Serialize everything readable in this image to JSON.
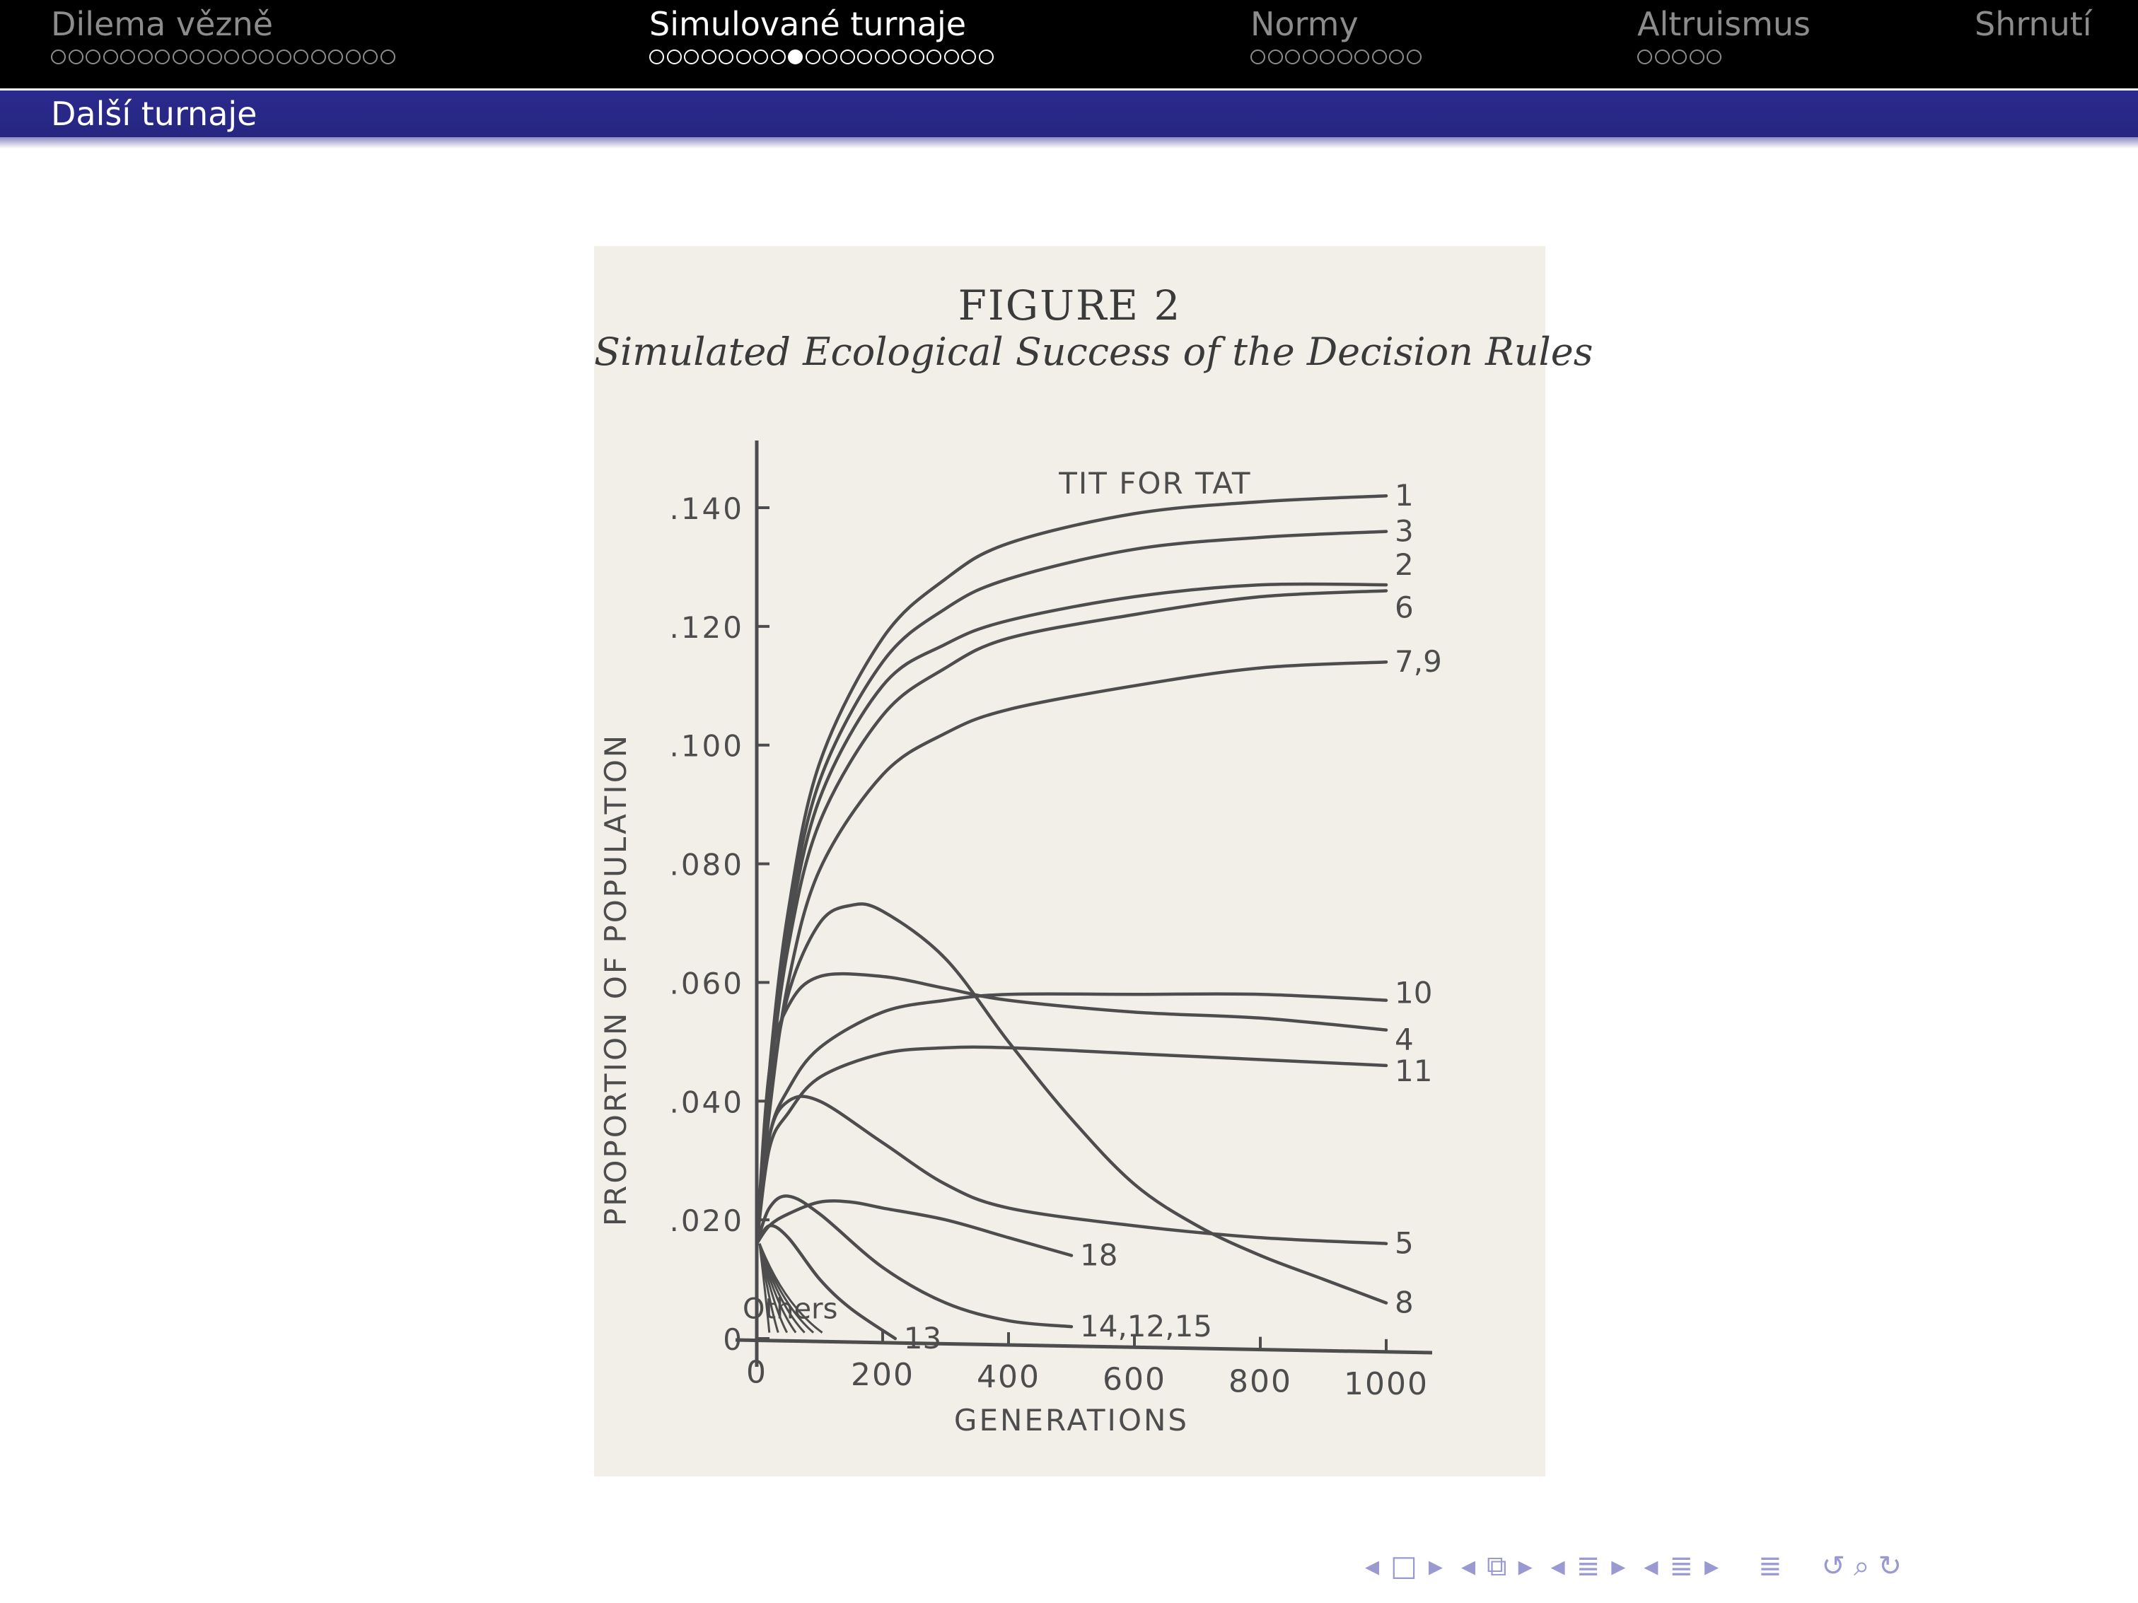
{
  "nav": {
    "sections": [
      {
        "label": "Dilema vězně",
        "dots_total": 20,
        "current_dot": null,
        "active": false
      },
      {
        "label": "Simulované turnaje",
        "dots_total": 20,
        "current_dot": 8,
        "active": true
      },
      {
        "label": "Normy",
        "dots_total": 10,
        "current_dot": null,
        "active": false
      },
      {
        "label": "Altruismus",
        "dots_total": 5,
        "current_dot": null,
        "active": false
      },
      {
        "label": "Shrnutí",
        "dots_total": 0,
        "current_dot": null,
        "active": false
      }
    ],
    "colors": {
      "active": "#ffffff",
      "inactive": "#8c8c8c",
      "bar": "#000000",
      "title_bar": "#272783"
    }
  },
  "frame_title": "Další turnaje",
  "figure": {
    "number": "FIGURE 2",
    "caption": "Simulated Ecological Success of the Decision Rules"
  },
  "chart_data": {
    "type": "line",
    "title": "FIGURE 2",
    "subtitle": "Simulated Ecological Success of the Decision Rules",
    "xlabel": "GENERATIONS",
    "ylabel": "PROPORTION OF POPULATION",
    "xlim": [
      0,
      1000
    ],
    "ylim": [
      0,
      0.14
    ],
    "x_ticks": [
      0,
      200,
      400,
      600,
      800,
      1000
    ],
    "x_tick_labels": [
      "0",
      "200",
      "400",
      "600",
      "800",
      "1000"
    ],
    "y_ticks": [
      0,
      0.02,
      0.04,
      0.06,
      0.08,
      0.1,
      0.12,
      0.14
    ],
    "y_tick_labels": [
      "0",
      ".020",
      ".040",
      ".060",
      ".080",
      ".100",
      ".120",
      ".140"
    ],
    "annotation": "TIT FOR TAT",
    "series": [
      {
        "name": "1",
        "x": [
          0,
          20,
          50,
          100,
          200,
          300,
          400,
          600,
          800,
          1000
        ],
        "y": [
          0.016,
          0.045,
          0.072,
          0.097,
          0.118,
          0.128,
          0.134,
          0.139,
          0.141,
          0.142
        ]
      },
      {
        "name": "3",
        "x": [
          0,
          20,
          50,
          100,
          200,
          300,
          400,
          600,
          800,
          1000
        ],
        "y": [
          0.016,
          0.044,
          0.07,
          0.094,
          0.114,
          0.123,
          0.128,
          0.133,
          0.135,
          0.136
        ]
      },
      {
        "name": "2",
        "x": [
          0,
          20,
          50,
          100,
          200,
          300,
          400,
          600,
          800,
          1000
        ],
        "y": [
          0.016,
          0.043,
          0.068,
          0.091,
          0.11,
          0.117,
          0.121,
          0.125,
          0.127,
          0.127
        ]
      },
      {
        "name": "6",
        "x": [
          0,
          20,
          50,
          100,
          200,
          300,
          400,
          600,
          800,
          1000
        ],
        "y": [
          0.016,
          0.042,
          0.066,
          0.087,
          0.105,
          0.113,
          0.118,
          0.122,
          0.125,
          0.126
        ]
      },
      {
        "name": "7,9",
        "x": [
          0,
          20,
          50,
          100,
          200,
          300,
          400,
          600,
          800,
          1000
        ],
        "y": [
          0.016,
          0.038,
          0.06,
          0.079,
          0.095,
          0.102,
          0.106,
          0.11,
          0.113,
          0.114
        ]
      },
      {
        "name": "10",
        "x": [
          0,
          20,
          50,
          100,
          200,
          300,
          400,
          600,
          800,
          1000
        ],
        "y": [
          0.016,
          0.034,
          0.042,
          0.049,
          0.055,
          0.057,
          0.058,
          0.058,
          0.058,
          0.057
        ]
      },
      {
        "name": "4",
        "x": [
          0,
          20,
          50,
          100,
          200,
          300,
          400,
          600,
          800,
          1000
        ],
        "y": [
          0.016,
          0.045,
          0.056,
          0.061,
          0.061,
          0.059,
          0.057,
          0.055,
          0.054,
          0.052
        ]
      },
      {
        "name": "11",
        "x": [
          0,
          20,
          50,
          100,
          200,
          300,
          400,
          600,
          800,
          1000
        ],
        "y": [
          0.016,
          0.032,
          0.038,
          0.044,
          0.048,
          0.049,
          0.049,
          0.048,
          0.047,
          0.046
        ]
      },
      {
        "name": "8",
        "x": [
          0,
          20,
          50,
          100,
          150,
          200,
          300,
          400,
          500,
          600,
          700,
          800,
          900,
          1000
        ],
        "y": [
          0.016,
          0.04,
          0.058,
          0.07,
          0.073,
          0.072,
          0.064,
          0.05,
          0.037,
          0.026,
          0.019,
          0.014,
          0.01,
          0.006
        ]
      },
      {
        "name": "5",
        "x": [
          0,
          20,
          50,
          100,
          200,
          300,
          400,
          600,
          800,
          1000
        ],
        "y": [
          0.016,
          0.034,
          0.04,
          0.04,
          0.033,
          0.026,
          0.022,
          0.019,
          0.017,
          0.016
        ]
      },
      {
        "name": "18",
        "x": [
          0,
          20,
          50,
          100,
          150,
          200,
          300,
          400,
          500
        ],
        "y": [
          0.016,
          0.019,
          0.021,
          0.023,
          0.023,
          0.022,
          0.02,
          0.017,
          0.014
        ]
      },
      {
        "name": "14,12,15",
        "x": [
          0,
          20,
          50,
          100,
          200,
          300,
          400,
          500
        ],
        "y": [
          0.016,
          0.022,
          0.024,
          0.021,
          0.012,
          0.006,
          0.003,
          0.002
        ]
      },
      {
        "name": "13",
        "x": [
          0,
          20,
          50,
          100,
          150,
          220
        ],
        "y": [
          0.016,
          0.019,
          0.017,
          0.01,
          0.005,
          0.0
        ]
      }
    ],
    "others_label": "Others",
    "grid": false,
    "legend": "none (series labels printed at right end of each curve)"
  },
  "controls": {
    "symbols": [
      "◂",
      "□",
      "▸",
      "◂",
      "⧉",
      "▸",
      "◂",
      "≣",
      "▸",
      "◂",
      "≣",
      "▸",
      "≣",
      "↺",
      "⌕",
      "↻"
    ],
    "color": "#9a9ad0"
  }
}
